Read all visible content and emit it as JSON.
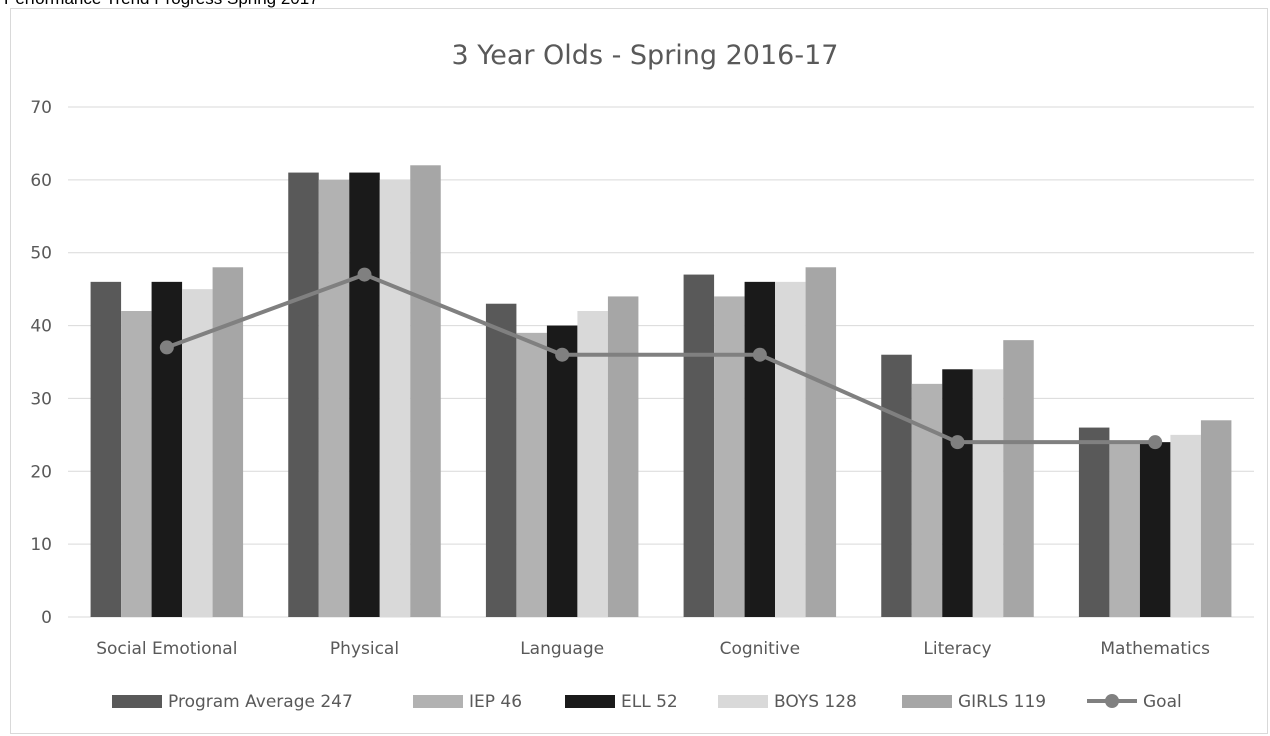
{
  "page": {
    "top_caption": "Performance Trend Progress Spring 2017"
  },
  "chart_data": {
    "type": "bar",
    "title": "3 Year Olds - Spring 2016-17",
    "xlabel": "",
    "ylabel": "",
    "ylim": [
      0,
      70
    ],
    "yticks": [
      0,
      10,
      20,
      30,
      40,
      50,
      60,
      70
    ],
    "grid": true,
    "legend_position": "bottom",
    "categories": [
      "Social Emotional",
      "Physical",
      "Language",
      "Cognitive",
      "Literacy",
      "Mathematics"
    ],
    "series": [
      {
        "name": "Program Average 247",
        "type": "bar",
        "color": "#595959",
        "values": [
          46,
          61,
          43,
          47,
          36,
          26
        ]
      },
      {
        "name": "IEP 46",
        "type": "bar",
        "color": "#b2b2b2",
        "values": [
          42,
          60,
          39,
          44,
          32,
          24
        ]
      },
      {
        "name": "ELL 52",
        "type": "bar",
        "color": "#1a1a1a",
        "values": [
          46,
          61,
          40,
          46,
          34,
          24
        ]
      },
      {
        "name": "BOYS 128",
        "type": "bar",
        "color": "#d9d9d9",
        "values": [
          45,
          60,
          42,
          46,
          34,
          25
        ]
      },
      {
        "name": "GIRLS 119",
        "type": "bar",
        "color": "#a6a6a6",
        "values": [
          48,
          62,
          44,
          48,
          38,
          27
        ]
      },
      {
        "name": "Goal",
        "type": "line",
        "color": "#808080",
        "values": [
          37,
          47,
          36,
          36,
          24,
          24
        ]
      }
    ]
  }
}
